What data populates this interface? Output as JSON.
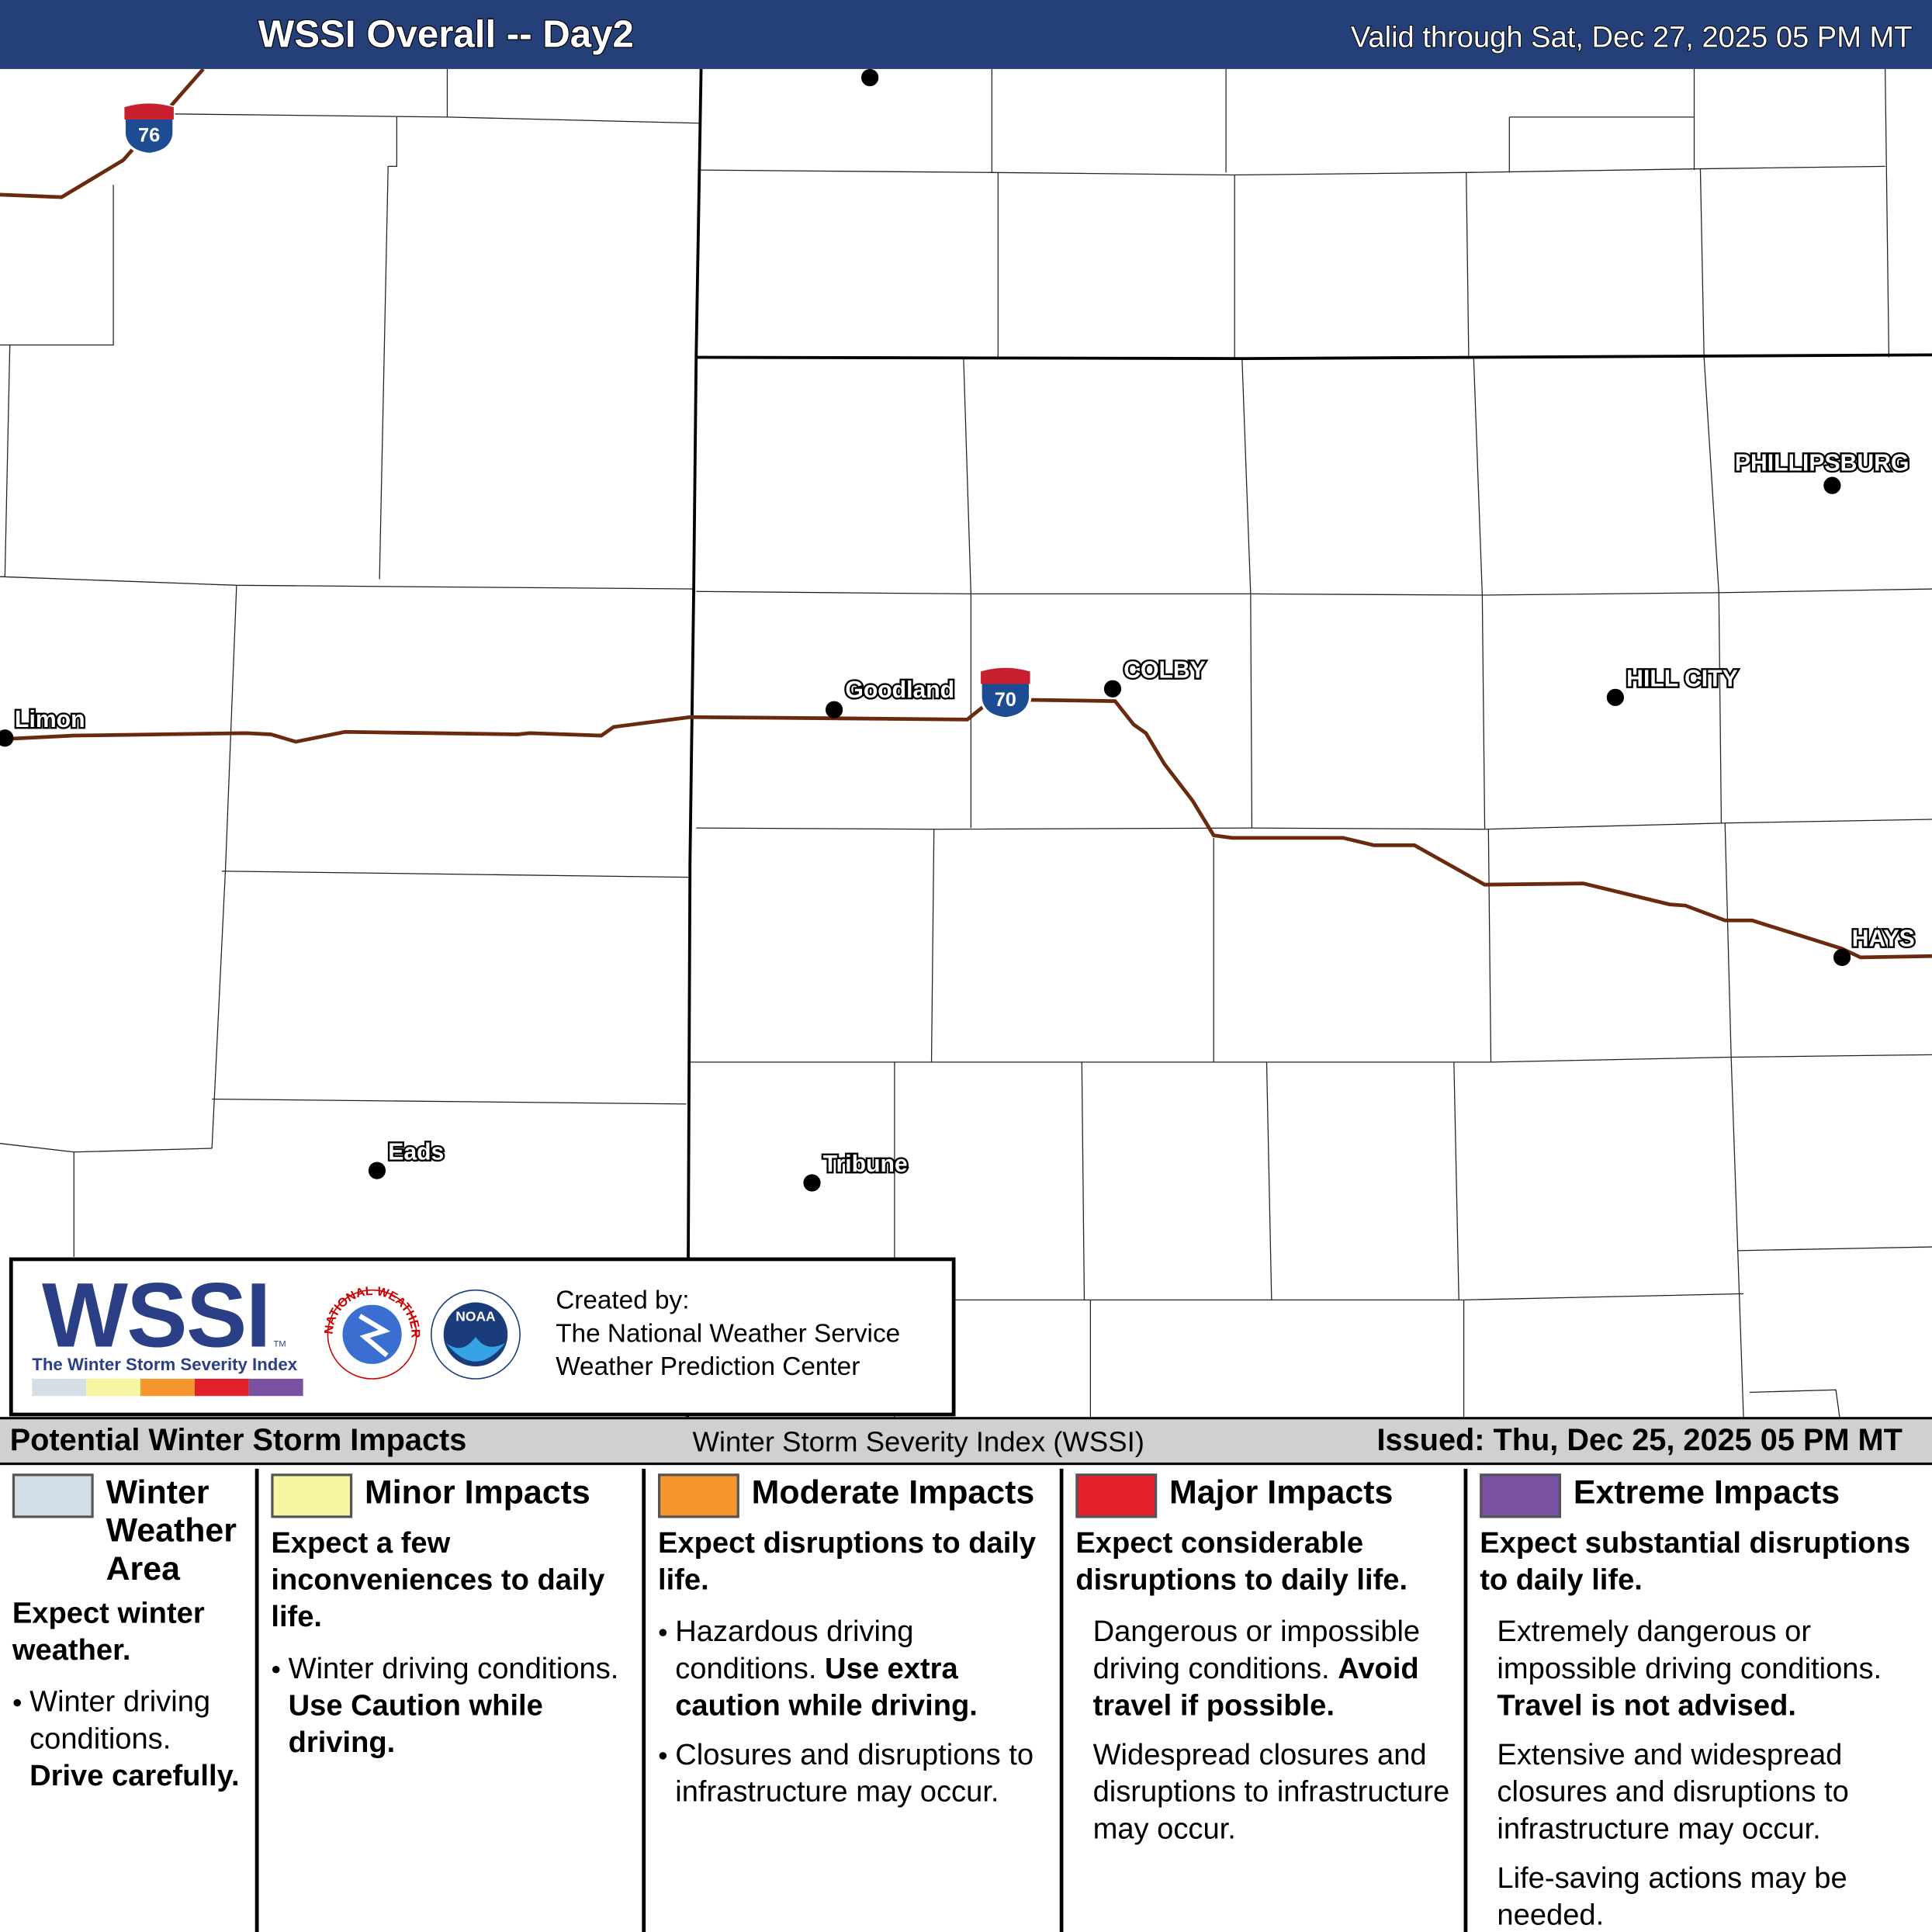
{
  "header": {
    "title": "WSSI Overall -- Day2",
    "valid": "Valid through Sat, Dec 27, 2025 05 PM MT"
  },
  "map": {
    "cities": [
      "Limon",
      "Goodland",
      "COLBY",
      "PHILLIPSBURG",
      "HILL CITY",
      "HAYS",
      "Eads",
      "Tribune"
    ],
    "highways": [
      "76",
      "70"
    ]
  },
  "logo": {
    "wordmark": "WSSI",
    "tm": "TM",
    "subtitle": "The Winter Storm Severity Index",
    "nws": "NATIONAL WEATHER SERVICE",
    "noaa": "NOAA",
    "created_by": [
      "Created by:",
      "The National Weather Service",
      "Weather Prediction Center"
    ]
  },
  "legend": {
    "title": "Potential Winter Storm Impacts",
    "index_name": "Winter Storm Severity Index (WSSI)",
    "issued": "Issued: Thu, Dec 25, 2025 05 PM MT",
    "columns": [
      {
        "name": "Winter Weather Area",
        "color": "#d3dee6",
        "headline": "Expect winter weather.",
        "paragraphs": [
          {
            "bullet": true,
            "parts": [
              {
                "text": "Winter driving conditions.",
                "bold": false
              },
              {
                "text": "Drive carefully.",
                "bold": true
              }
            ]
          }
        ]
      },
      {
        "name": "Minor Impacts",
        "color": "#f8f5a2",
        "headline": "Expect a few inconveniences to daily life.",
        "paragraphs": [
          {
            "bullet": true,
            "parts": [
              {
                "text": "Winter driving conditions.",
                "bold": false
              },
              {
                "text": "Use Caution while driving.",
                "bold": true
              }
            ]
          }
        ]
      },
      {
        "name": "Moderate Impacts",
        "color": "#f5962f",
        "headline": "Expect disruptions to daily life.",
        "paragraphs": [
          {
            "bullet": true,
            "parts": [
              {
                "text": "Hazardous driving conditions.",
                "bold": false
              },
              {
                "text": "Use extra caution while driving.",
                "bold": true
              }
            ]
          },
          {
            "bullet": true,
            "parts": [
              {
                "text": "Closures and disruptions to infrastructure may occur.",
                "bold": false
              }
            ]
          }
        ]
      },
      {
        "name": "Major Impacts",
        "color": "#e3202a",
        "headline": "Expect considerable disruptions to daily life.",
        "paragraphs": [
          {
            "bullet": false,
            "parts": [
              {
                "text": "Dangerous or impossible driving conditions.",
                "bold": false
              },
              {
                "text": "Avoid travel if possible.",
                "bold": true
              }
            ]
          },
          {
            "bullet": false,
            "parts": [
              {
                "text": "Widespread closures and disruptions to infrastructure may occur.",
                "bold": false
              }
            ]
          }
        ]
      },
      {
        "name": "Extreme Impacts",
        "color": "#7b52a3",
        "headline": "Expect substantial disruptions to daily life.",
        "paragraphs": [
          {
            "bullet": false,
            "parts": [
              {
                "text": "Extremely dangerous or impossible driving conditions.",
                "bold": false
              },
              {
                "text": "Travel is not advised.",
                "bold": true
              }
            ]
          },
          {
            "bullet": false,
            "parts": [
              {
                "text": "Extensive and widespread closures and disruptions to infrastructure may occur.",
                "bold": false
              }
            ]
          },
          {
            "bullet": false,
            "parts": [
              {
                "text": "Life-saving actions may be needed.",
                "bold": false
              }
            ]
          }
        ]
      }
    ]
  }
}
